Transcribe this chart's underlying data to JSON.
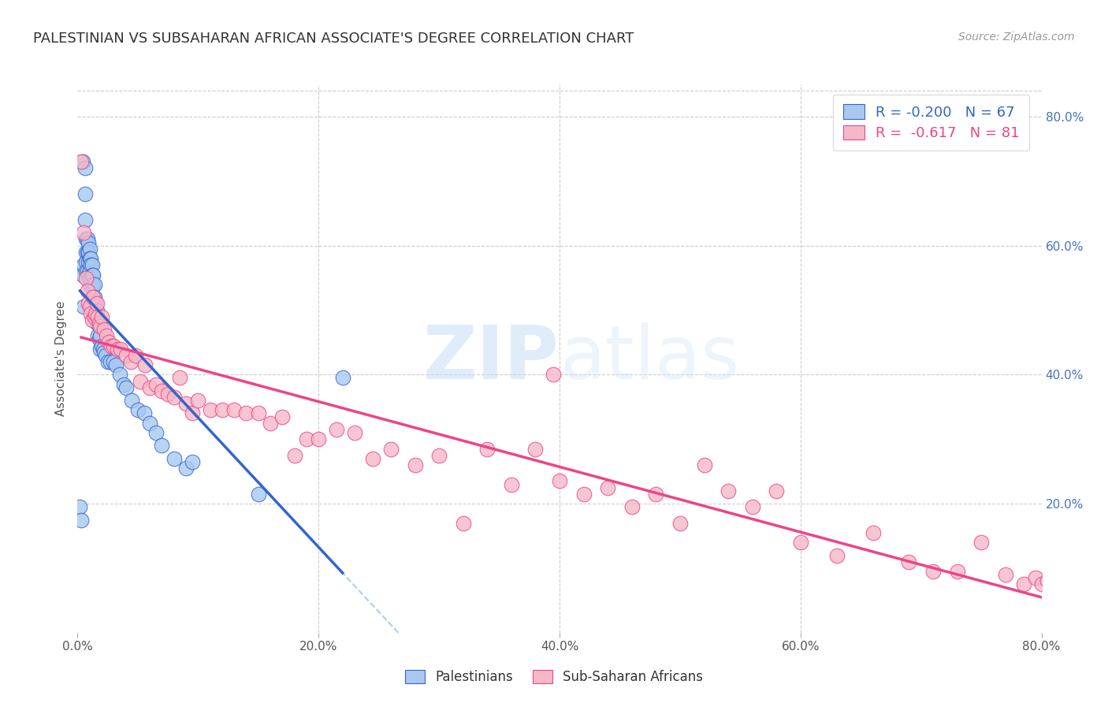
{
  "title": "PALESTINIAN VS SUBSAHARAN AFRICAN ASSOCIATE'S DEGREE CORRELATION CHART",
  "source": "Source: ZipAtlas.com",
  "ylabel": "Associate's Degree",
  "right_yticks": [
    "80.0%",
    "60.0%",
    "40.0%",
    "20.0%"
  ],
  "right_ytick_vals": [
    0.8,
    0.6,
    0.4,
    0.2
  ],
  "xmin": 0.0,
  "xmax": 0.8,
  "ymin": 0.0,
  "ymax": 0.85,
  "watermark_zip": "ZIP",
  "watermark_atlas": "atlas",
  "legend_r_blue": "-0.200",
  "legend_n_blue": "67",
  "legend_r_pink": "-0.617",
  "legend_n_pink": "81",
  "blue_color": "#a8c8f0",
  "pink_color": "#f5b8c8",
  "blue_line_color": "#3366cc",
  "pink_line_color": "#ee4488",
  "dashed_line_color": "#b0cce8",
  "title_fontsize": 13,
  "source_fontsize": 10,
  "axis_label_fontsize": 11,
  "tick_fontsize": 11,
  "legend_fontsize": 13,
  "blue_scatter_x": [
    0.002,
    0.003,
    0.004,
    0.004,
    0.005,
    0.005,
    0.006,
    0.006,
    0.006,
    0.007,
    0.007,
    0.007,
    0.007,
    0.008,
    0.008,
    0.008,
    0.009,
    0.009,
    0.009,
    0.009,
    0.01,
    0.01,
    0.01,
    0.01,
    0.011,
    0.011,
    0.011,
    0.012,
    0.012,
    0.012,
    0.013,
    0.013,
    0.013,
    0.014,
    0.014,
    0.014,
    0.015,
    0.015,
    0.016,
    0.016,
    0.017,
    0.017,
    0.018,
    0.019,
    0.019,
    0.02,
    0.021,
    0.022,
    0.023,
    0.025,
    0.027,
    0.03,
    0.032,
    0.035,
    0.038,
    0.04,
    0.045,
    0.05,
    0.055,
    0.06,
    0.065,
    0.07,
    0.08,
    0.09,
    0.095,
    0.15,
    0.22
  ],
  "blue_scatter_y": [
    0.195,
    0.175,
    0.555,
    0.73,
    0.57,
    0.505,
    0.72,
    0.68,
    0.64,
    0.61,
    0.59,
    0.575,
    0.56,
    0.61,
    0.59,
    0.56,
    0.605,
    0.59,
    0.575,
    0.555,
    0.595,
    0.58,
    0.56,
    0.54,
    0.58,
    0.57,
    0.55,
    0.57,
    0.555,
    0.535,
    0.555,
    0.54,
    0.52,
    0.54,
    0.52,
    0.5,
    0.51,
    0.495,
    0.5,
    0.48,
    0.48,
    0.46,
    0.455,
    0.46,
    0.44,
    0.445,
    0.44,
    0.435,
    0.43,
    0.42,
    0.42,
    0.42,
    0.415,
    0.4,
    0.385,
    0.38,
    0.36,
    0.345,
    0.34,
    0.325,
    0.31,
    0.29,
    0.27,
    0.255,
    0.265,
    0.215,
    0.395
  ],
  "pink_scatter_x": [
    0.003,
    0.005,
    0.007,
    0.008,
    0.009,
    0.01,
    0.011,
    0.012,
    0.013,
    0.014,
    0.015,
    0.016,
    0.017,
    0.018,
    0.019,
    0.02,
    0.022,
    0.024,
    0.026,
    0.028,
    0.03,
    0.033,
    0.036,
    0.04,
    0.044,
    0.048,
    0.052,
    0.056,
    0.06,
    0.065,
    0.07,
    0.075,
    0.08,
    0.085,
    0.09,
    0.095,
    0.1,
    0.11,
    0.12,
    0.13,
    0.14,
    0.15,
    0.16,
    0.17,
    0.18,
    0.19,
    0.2,
    0.215,
    0.23,
    0.245,
    0.26,
    0.28,
    0.3,
    0.32,
    0.34,
    0.36,
    0.38,
    0.4,
    0.42,
    0.44,
    0.46,
    0.48,
    0.5,
    0.52,
    0.54,
    0.56,
    0.58,
    0.6,
    0.63,
    0.66,
    0.69,
    0.71,
    0.73,
    0.75,
    0.77,
    0.785,
    0.795,
    0.8,
    0.805,
    0.81,
    0.395
  ],
  "pink_scatter_y": [
    0.73,
    0.62,
    0.55,
    0.53,
    0.51,
    0.505,
    0.495,
    0.485,
    0.52,
    0.49,
    0.495,
    0.51,
    0.49,
    0.48,
    0.475,
    0.49,
    0.47,
    0.46,
    0.45,
    0.445,
    0.445,
    0.44,
    0.44,
    0.43,
    0.42,
    0.43,
    0.39,
    0.415,
    0.38,
    0.385,
    0.375,
    0.37,
    0.365,
    0.395,
    0.355,
    0.34,
    0.36,
    0.345,
    0.345,
    0.345,
    0.34,
    0.34,
    0.325,
    0.335,
    0.275,
    0.3,
    0.3,
    0.315,
    0.31,
    0.27,
    0.285,
    0.26,
    0.275,
    0.17,
    0.285,
    0.23,
    0.285,
    0.235,
    0.215,
    0.225,
    0.195,
    0.215,
    0.17,
    0.26,
    0.22,
    0.195,
    0.22,
    0.14,
    0.12,
    0.155,
    0.11,
    0.095,
    0.095,
    0.14,
    0.09,
    0.075,
    0.085,
    0.075,
    0.08,
    0.08,
    0.4
  ]
}
